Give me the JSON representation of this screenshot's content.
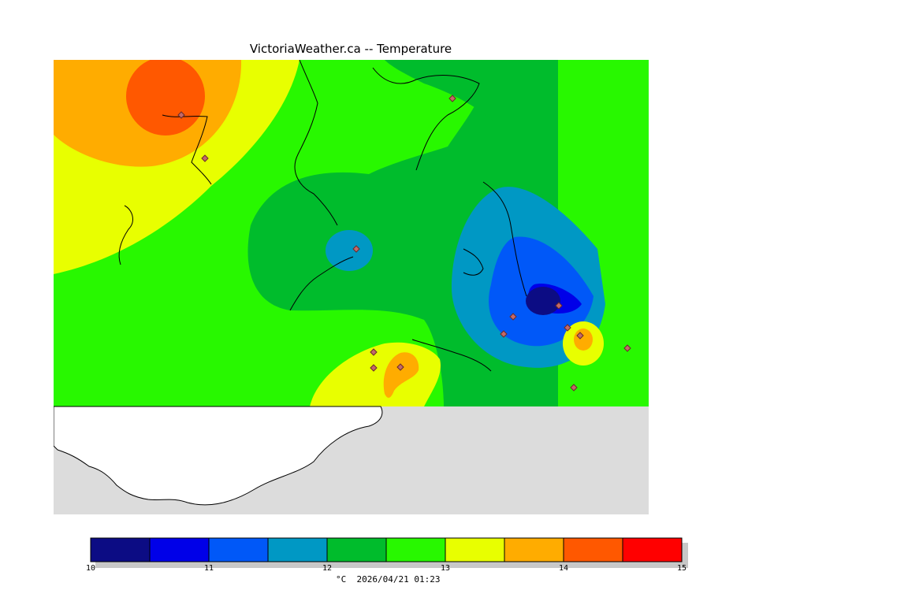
{
  "title": "VictoriaWeather.ca -- Temperature",
  "legend": {
    "unit": "°C",
    "timestamp": "2026/04/21 01:23",
    "ticks": [
      "10",
      "11",
      "12",
      "13",
      "14",
      "15"
    ],
    "bins": [
      {
        "min": 10.0,
        "max": 10.5,
        "color": "#0c0c84"
      },
      {
        "min": 10.5,
        "max": 11.0,
        "color": "#0000e8"
      },
      {
        "min": 11.0,
        "max": 11.5,
        "color": "#0058f8"
      },
      {
        "min": 11.5,
        "max": 12.0,
        "color": "#0098c4"
      },
      {
        "min": 12.0,
        "max": 12.5,
        "color": "#00bc2c"
      },
      {
        "min": 12.5,
        "max": 13.0,
        "color": "#28f800"
      },
      {
        "min": 13.0,
        "max": 13.5,
        "color": "#e8ff00"
      },
      {
        "min": 13.5,
        "max": 14.0,
        "color": "#ffac00"
      },
      {
        "min": 14.0,
        "max": 14.5,
        "color": "#ff5800"
      },
      {
        "min": 14.5,
        "max": 15.0,
        "color": "#ff0000"
      }
    ]
  },
  "colors": {
    "background": "#dcdcdc",
    "no_data": "#ffffff",
    "coastline": "#000000",
    "station_marker": "#c26a6a"
  },
  "icons": [
    "station-marker-icon"
  ]
}
